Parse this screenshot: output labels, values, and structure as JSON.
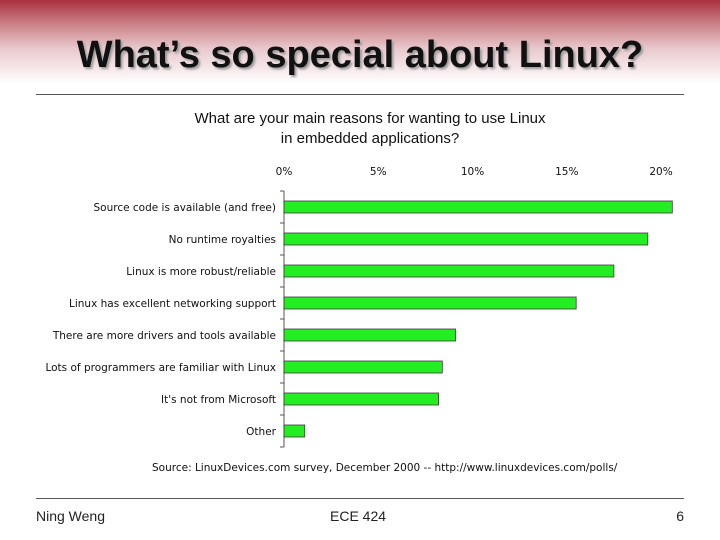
{
  "slide": {
    "title": "What’s so special about Linux?",
    "footer_left": "Ning Weng",
    "footer_center": "ECE 424",
    "footer_right": "6"
  },
  "chart_data": {
    "type": "bar",
    "orientation": "horizontal",
    "title_lines": [
      "What are your main reasons for wanting to use Linux",
      "in embedded applications?"
    ],
    "categories": [
      "Source code is available (and free)",
      "No runtime royalties",
      "Linux is more robust/reliable",
      "Linux has excellent networking support",
      "There are more drivers and tools available",
      "Lots of programmers are familiar with Linux",
      "It's not from Microsoft",
      "Other"
    ],
    "values": [
      20.6,
      19.3,
      17.5,
      15.5,
      9.1,
      8.4,
      8.2,
      1.1
    ],
    "xlim": [
      0,
      20
    ],
    "xticks": [
      "0%",
      "5%",
      "10%",
      "15%",
      "20%"
    ],
    "bar_color": "#22ee22",
    "bar_edge_color": "#3a3a3a",
    "source_note": "Source: LinuxDevices.com survey, December 2000 -- http://www.linuxdevices.com/polls/",
    "grid": false,
    "legend": "none"
  }
}
